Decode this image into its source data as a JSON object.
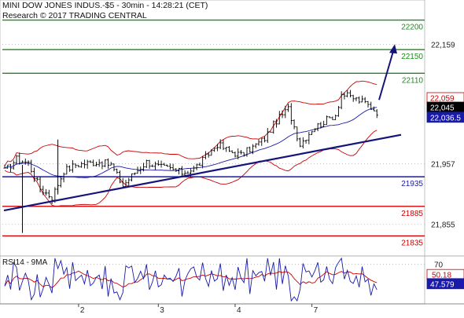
{
  "header": {
    "line1": "MINI DOW JONES INDUS.-$5 - 30min - 14:28:21 (CET)",
    "line2": "Research © 2017 TRADING CENTRAL"
  },
  "rsi_label": "RSI14 - 9MA",
  "colors": {
    "candle": "#000000",
    "bollinger": "#cc0000",
    "ma": "#1a1aa8",
    "resistance": "#1c8a1c",
    "support": "#cc0000",
    "pivot": "#1a1aa8",
    "trendline": "#14147a",
    "arrow": "#14147a",
    "last_price_box": "#000000",
    "prev_box": "#cc0000",
    "ma_box": "#1a1aa8",
    "rsi_line": "#1a1aa8",
    "rsi_ma": "#cc0000"
  },
  "chart_data": {
    "type": "candlestick",
    "instrument": "MINI DOW JONES INDUS.-$5",
    "timeframe": "30min",
    "y_range": [
      21805,
      22230
    ],
    "y_ticks": [
      "22,159",
      "21,957",
      "21,855"
    ],
    "x_ticks": [
      "2",
      "3",
      "4",
      "7"
    ],
    "levels": [
      {
        "value": 22200,
        "label": "22200",
        "kind": "resistance"
      },
      {
        "value": 22150,
        "label": "22150",
        "kind": "resistance"
      },
      {
        "value": 22110,
        "label": "22110",
        "kind": "resistance"
      },
      {
        "value": 21935,
        "label": "21935",
        "kind": "pivot"
      },
      {
        "value": 21885,
        "label": "21885",
        "kind": "support"
      },
      {
        "value": 21835,
        "label": "21835",
        "kind": "support"
      }
    ],
    "price_boxes": [
      {
        "label": "22,059",
        "kind": "prev"
      },
      {
        "label": "22,045",
        "kind": "last"
      },
      {
        "label": "22,036.5",
        "kind": "ma"
      }
    ],
    "trendline": {
      "from": [
        21878,
        "start"
      ],
      "to": [
        22006,
        "end"
      ]
    },
    "close_anchor_points": [
      [
        0,
        21945
      ],
      [
        4,
        21965
      ],
      [
        8,
        21958
      ],
      [
        12,
        21915
      ],
      [
        16,
        21900
      ],
      [
        20,
        21945
      ],
      [
        24,
        21955
      ],
      [
        28,
        21958
      ],
      [
        32,
        21960
      ],
      [
        36,
        21955
      ],
      [
        40,
        21920
      ],
      [
        44,
        21942
      ],
      [
        48,
        21960
      ],
      [
        52,
        21952
      ],
      [
        56,
        21948
      ],
      [
        60,
        21942
      ],
      [
        64,
        21948
      ],
      [
        68,
        21968
      ],
      [
        72,
        21990
      ],
      [
        76,
        21978
      ],
      [
        80,
        21972
      ],
      [
        84,
        21985
      ],
      [
        88,
        22000
      ],
      [
        92,
        22030
      ],
      [
        96,
        22050
      ],
      [
        100,
        21990
      ],
      [
        104,
        22015
      ],
      [
        108,
        22028
      ],
      [
        112,
        22040
      ],
      [
        114,
        22075
      ],
      [
        118,
        22068
      ],
      [
        122,
        22060
      ],
      [
        126,
        22045
      ]
    ],
    "rsi": {
      "period": 14,
      "ma_period": 9,
      "y_tick": "70",
      "rsi_value": "47.579",
      "ma_value": "50.18"
    }
  }
}
